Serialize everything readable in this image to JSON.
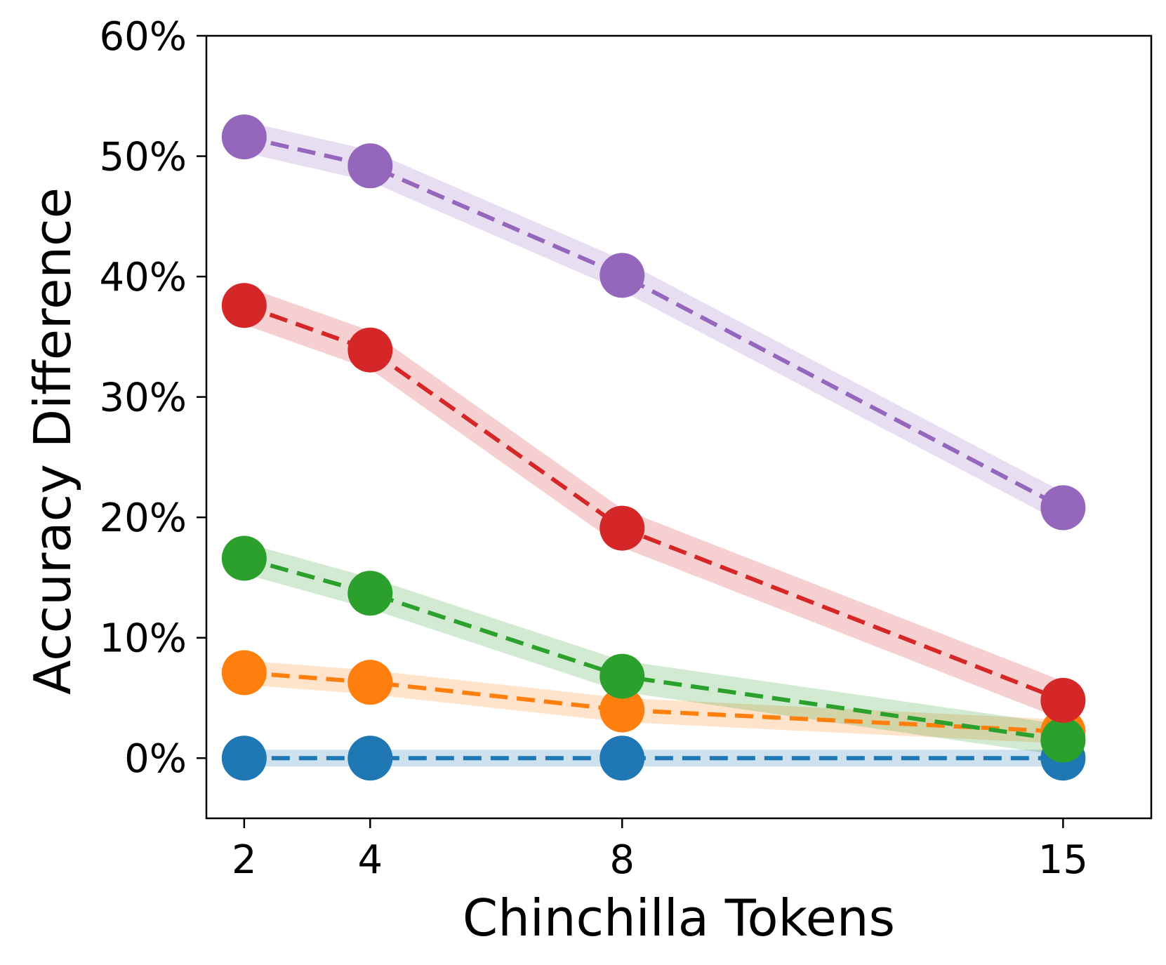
{
  "chart_data": {
    "type": "line",
    "xlabel": "Chinchilla Tokens",
    "ylabel": "Accuracy Difference",
    "x": [
      2,
      4,
      8,
      15
    ],
    "x_tick_labels": [
      "2",
      "4",
      "8",
      "15"
    ],
    "ylim": [
      -5,
      60
    ],
    "y_ticks": [
      0,
      10,
      20,
      30,
      40,
      50,
      60
    ],
    "y_tick_labels": [
      "0%",
      "10%",
      "20%",
      "30%",
      "40%",
      "50%",
      "60%"
    ],
    "grid": false,
    "legend": "none",
    "line_style": "dashed",
    "series": [
      {
        "color": "#1f77b4",
        "values": [
          0.0,
          0.0,
          0.0,
          0.0
        ],
        "band": 0.7
      },
      {
        "color": "#ff7f0e",
        "values": [
          7.1,
          6.3,
          4.0,
          2.2
        ],
        "band": 1.0
      },
      {
        "color": "#2ca02c",
        "values": [
          16.6,
          13.7,
          6.8,
          1.5
        ],
        "band": 1.3
      },
      {
        "color": "#d62728",
        "values": [
          37.6,
          33.9,
          19.1,
          4.8
        ],
        "band": 1.6
      },
      {
        "color": "#9467bd",
        "values": [
          51.6,
          49.2,
          40.1,
          20.8
        ],
        "band": 1.3
      }
    ]
  }
}
